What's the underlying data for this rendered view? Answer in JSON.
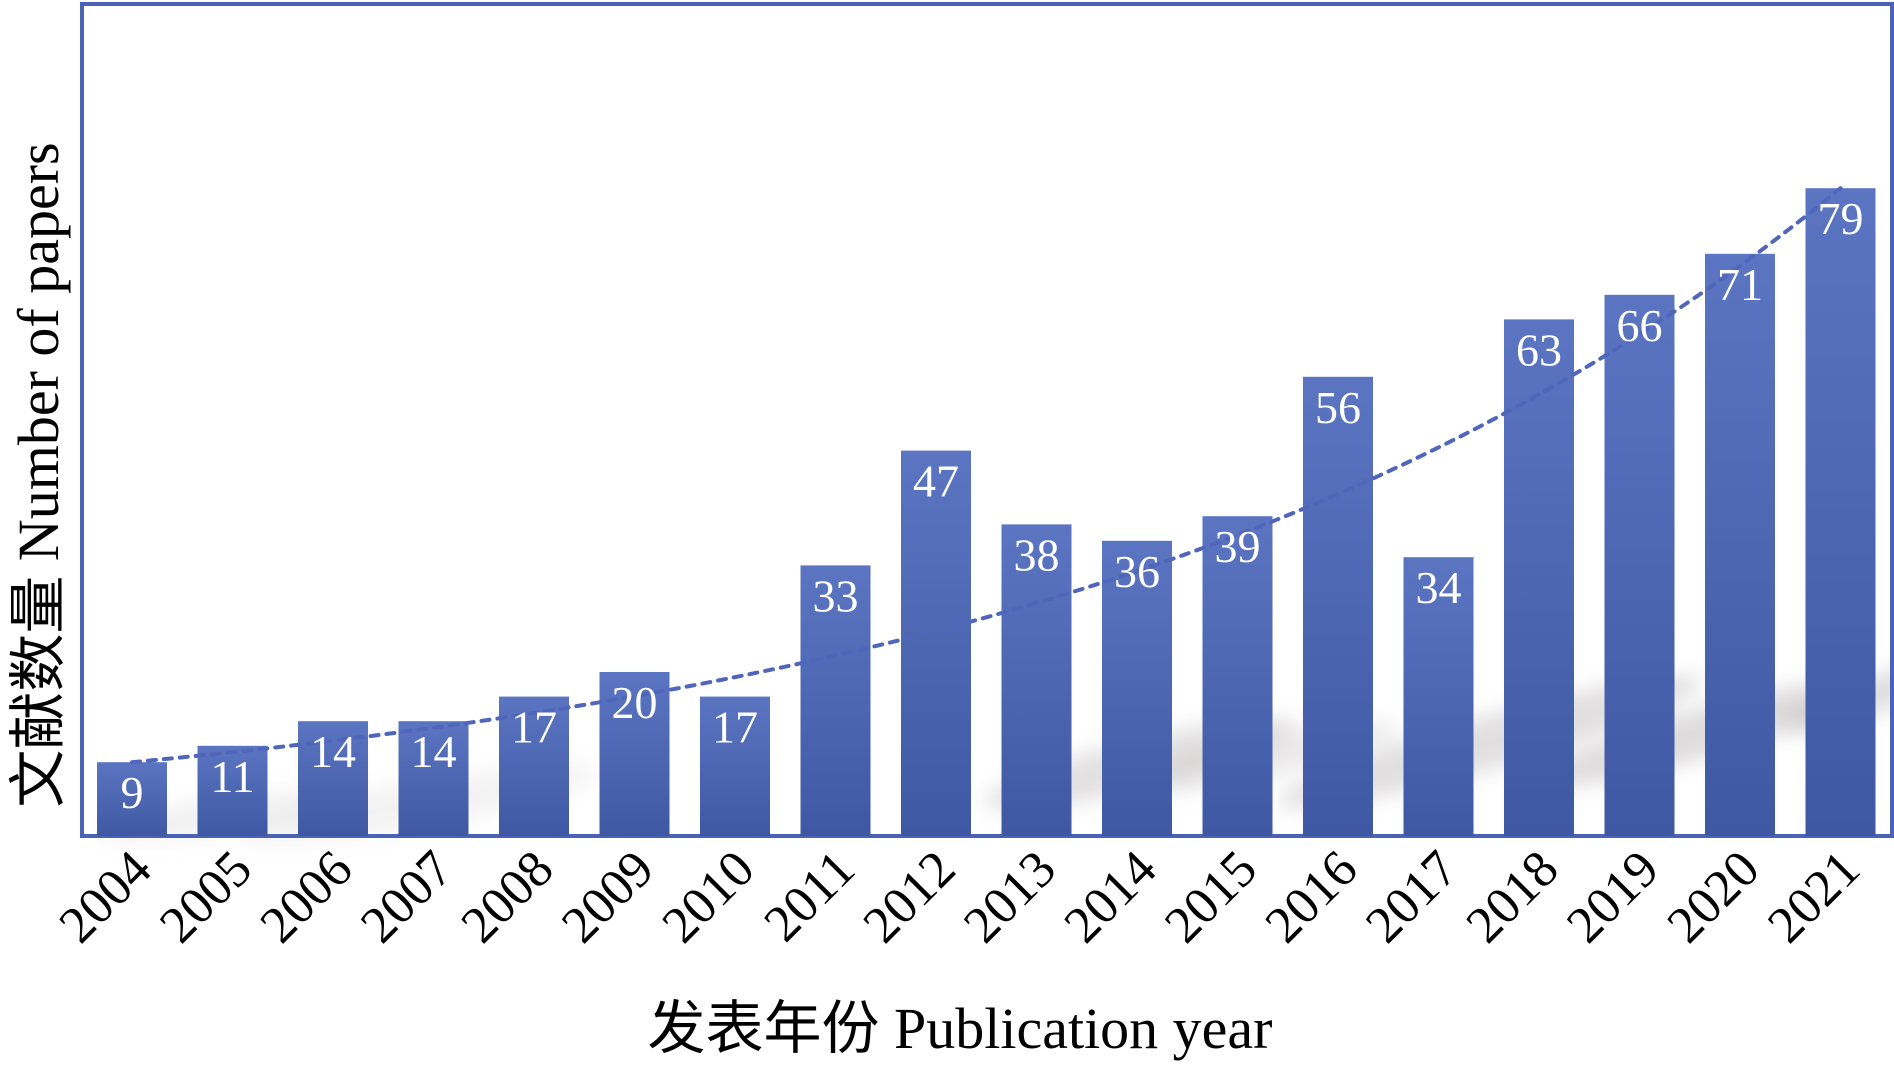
{
  "chart_data": {
    "type": "bar",
    "categories": [
      "2004",
      "2005",
      "2006",
      "2007",
      "2008",
      "2009",
      "2010",
      "2011",
      "2012",
      "2013",
      "2014",
      "2015",
      "2016",
      "2017",
      "2018",
      "2019",
      "2020",
      "2021"
    ],
    "values": [
      9,
      11,
      14,
      14,
      17,
      20,
      17,
      33,
      47,
      38,
      36,
      39,
      56,
      34,
      63,
      66,
      71,
      79
    ],
    "title": "",
    "xlabel": "发表年份 Publication year",
    "ylabel": "文献数量 Number of papers",
    "ylim": [
      0,
      90
    ],
    "grid": false,
    "legend": "none",
    "data_labels": true,
    "trendline": {
      "type": "exponential",
      "style": "dashed"
    },
    "colors": {
      "bar_top": "#5b75c2",
      "bar_bottom": "#3f58a3",
      "frame": "#4a63b5",
      "trendline": "#4f66ba",
      "shadow": "#b7b2b2"
    }
  }
}
